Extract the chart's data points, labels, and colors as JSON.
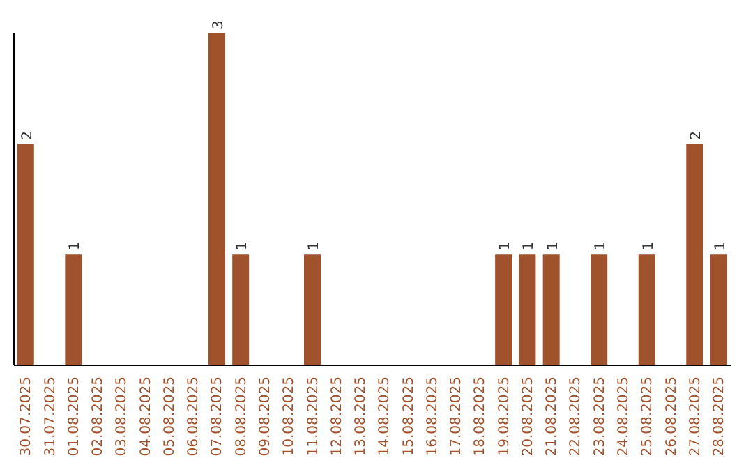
{
  "chart_data": {
    "type": "bar",
    "categories": [
      "30.07.2025",
      "31.07.2025",
      "01.08.2025",
      "02.08.2025",
      "03.08.2025",
      "04.08.2025",
      "05.08.2025",
      "06.08.2025",
      "07.08.2025",
      "08.08.2025",
      "09.08.2025",
      "10.08.2025",
      "11.08.2025",
      "12.08.2025",
      "13.08.2025",
      "14.08.2025",
      "15.08.2025",
      "16.08.2025",
      "17.08.2025",
      "18.08.2025",
      "19.08.2025",
      "20.08.2025",
      "21.08.2025",
      "22.08.2025",
      "23.08.2025",
      "24.08.2025",
      "25.08.2025",
      "26.08.2025",
      "27.08.2025",
      "28.08.2025"
    ],
    "values": [
      2,
      0,
      1,
      0,
      0,
      0,
      0,
      0,
      3,
      1,
      0,
      0,
      1,
      0,
      0,
      0,
      0,
      0,
      0,
      0,
      1,
      1,
      1,
      0,
      1,
      0,
      1,
      0,
      2,
      1
    ],
    "value_labels": [
      "2",
      null,
      "1",
      null,
      null,
      null,
      null,
      null,
      "3",
      "1",
      null,
      null,
      "1",
      null,
      null,
      null,
      null,
      null,
      null,
      null,
      "1",
      "1",
      "1",
      null,
      "1",
      null,
      "1",
      null,
      "2",
      "1"
    ],
    "color": "#a0522d",
    "ylim": [
      0,
      3
    ],
    "tick_labels": "x"
  }
}
